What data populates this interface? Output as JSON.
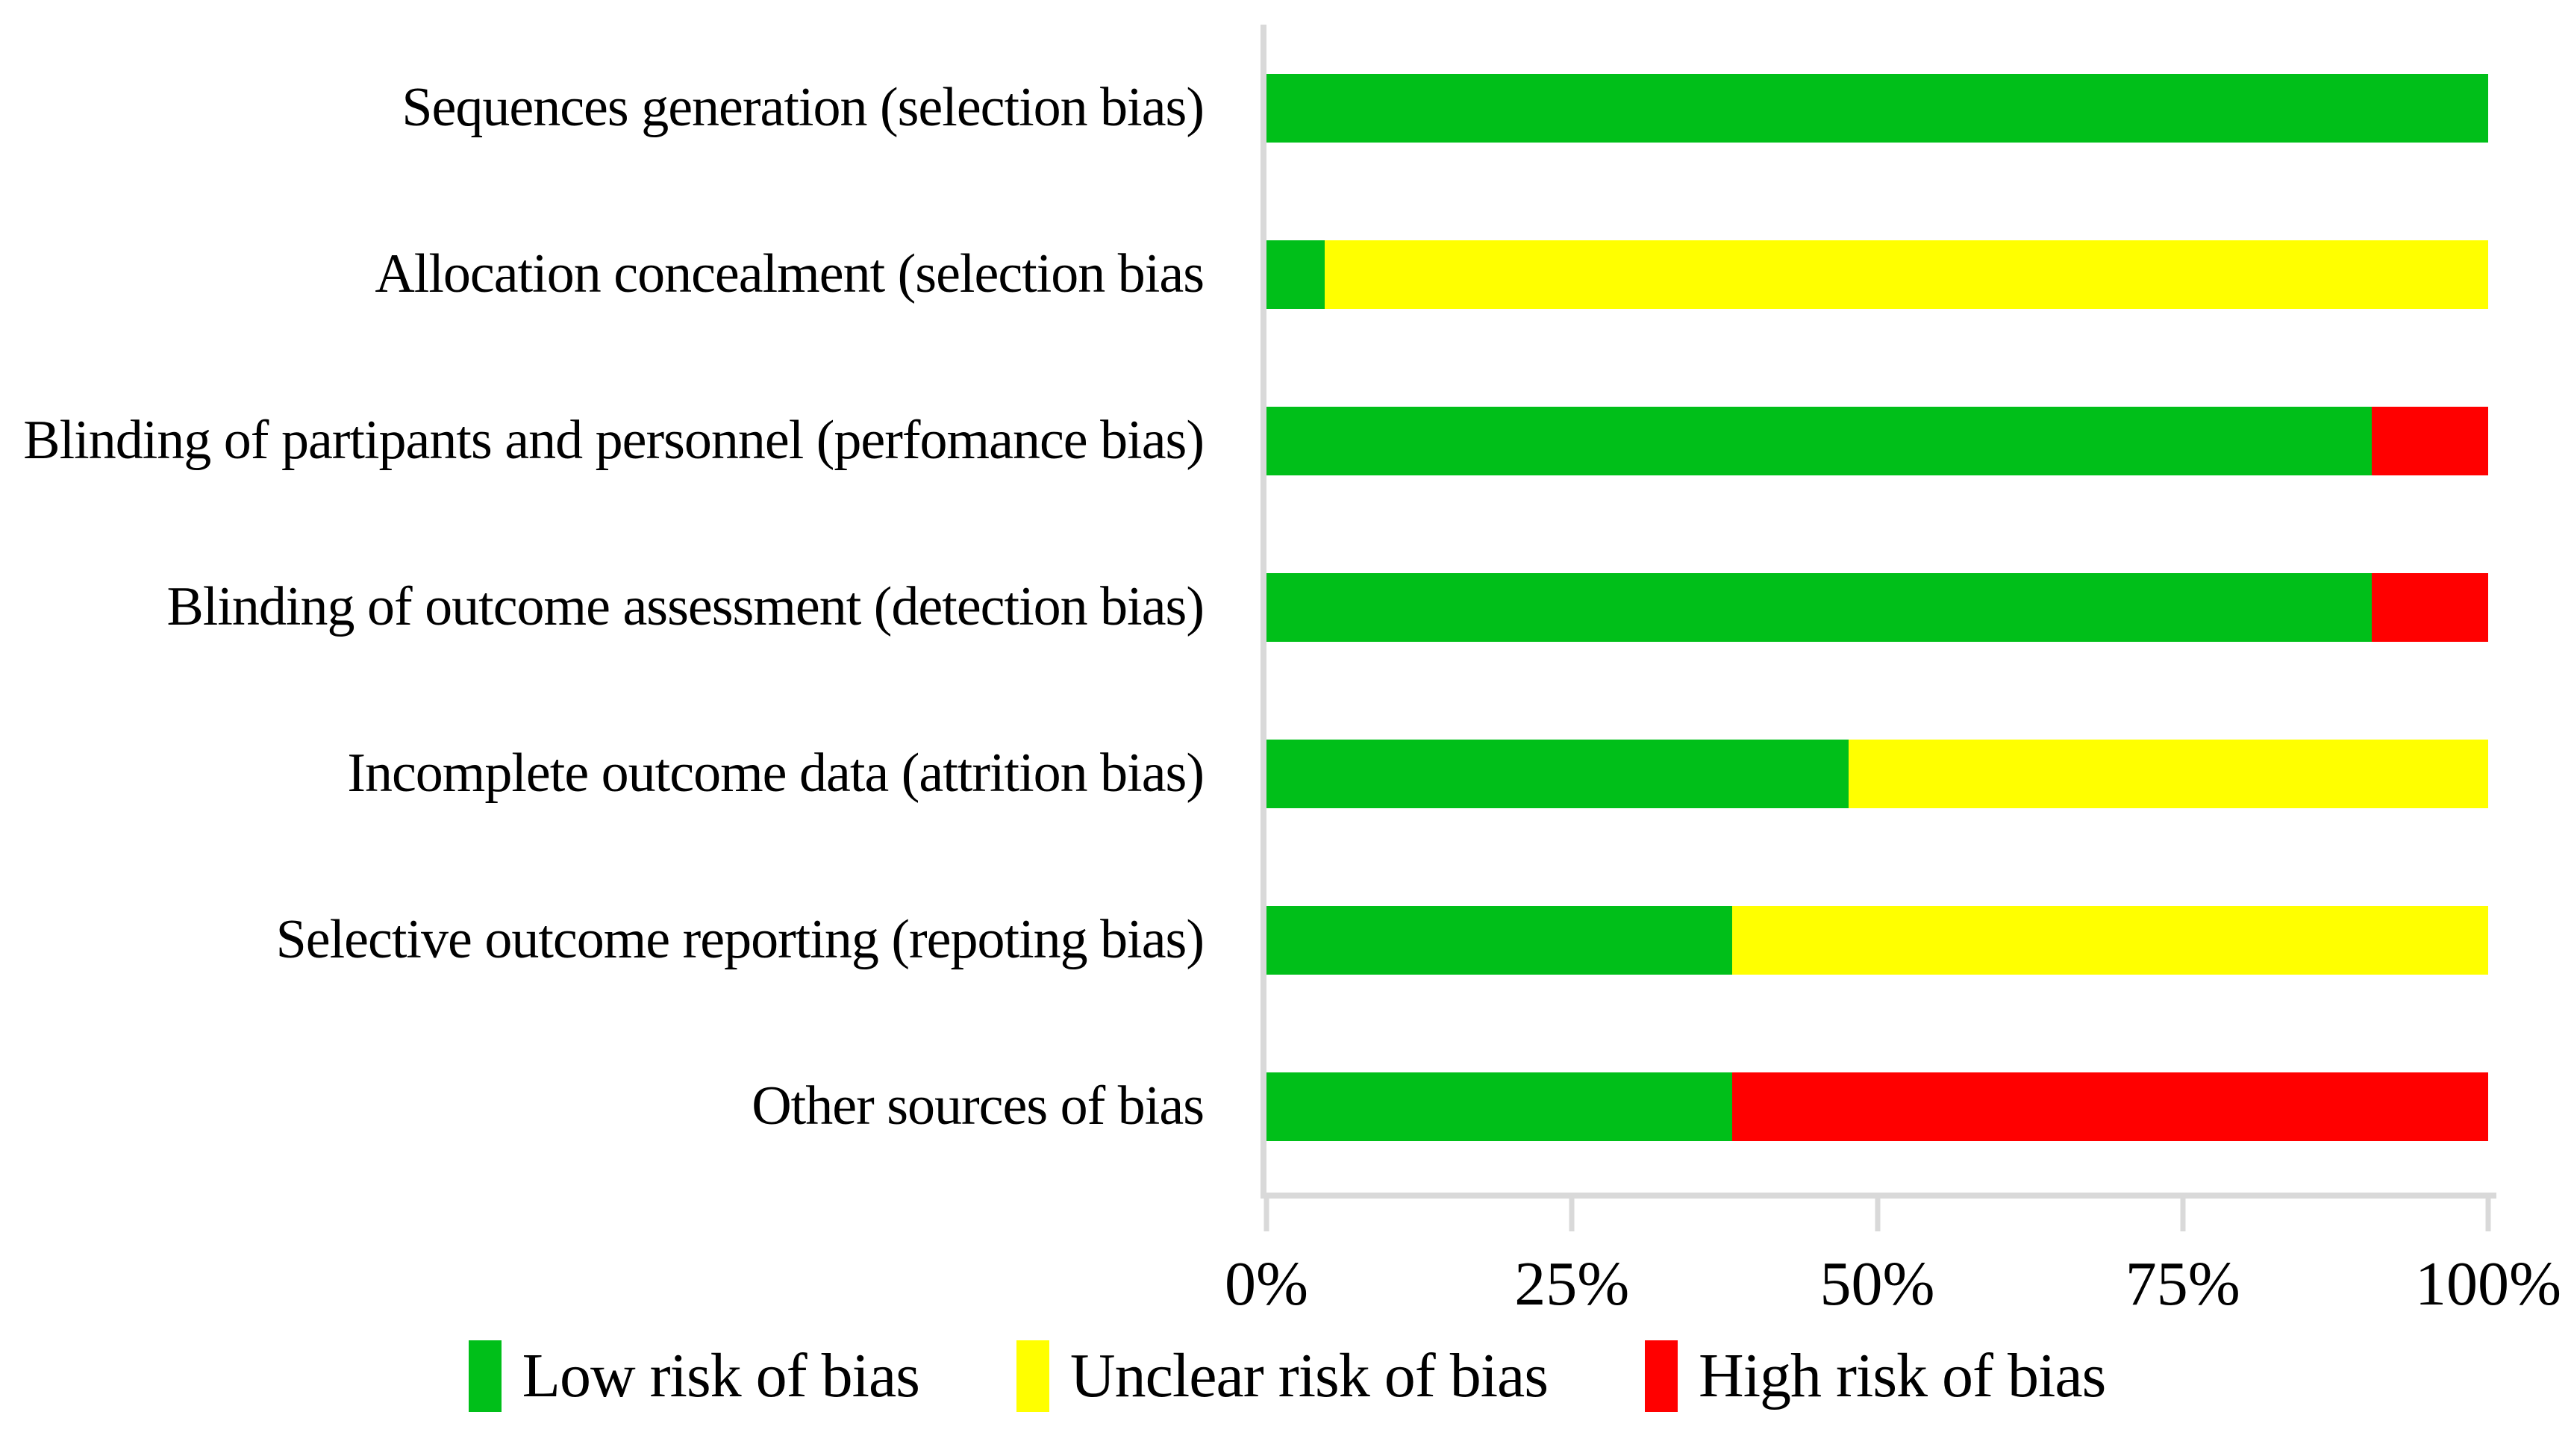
{
  "chart_data": {
    "type": "bar",
    "orientation": "horizontal",
    "stacked": true,
    "unit": "percent",
    "title": "",
    "xlabel": "",
    "ylabel": "",
    "grid": false,
    "legend_position": "bottom",
    "axis_color": "#d9d9d9",
    "background_color": "#ffffff",
    "categories": [
      "Sequences generation (selection bias)",
      "Allocation concealment (selection bias",
      "Blinding of partipants and personnel (perfomance bias)",
      "Blinding of outcome assessment (detection bias)",
      "Incomplete outcome data (attrition bias)",
      "Selective outcome reporting (repoting bias)",
      "Other sources of bias"
    ],
    "series": [
      {
        "name": "Low risk of bias",
        "color": "#00bf19",
        "values": [
          100,
          4.76,
          90.48,
          90.48,
          47.62,
          38.1,
          38.1
        ]
      },
      {
        "name": "Unclear risk of bias",
        "color": "#ffff00",
        "values": [
          0,
          95.24,
          0,
          0,
          52.38,
          61.9,
          0
        ]
      },
      {
        "name": "High risk of bias",
        "color": "#ff0000",
        "values": [
          0,
          0,
          9.52,
          9.52,
          0,
          0,
          61.9
        ]
      }
    ],
    "x_axis": {
      "range": [
        0,
        100
      ],
      "tick_labels": [
        "0%",
        "25%",
        "50%",
        "75%",
        "100%"
      ]
    }
  }
}
